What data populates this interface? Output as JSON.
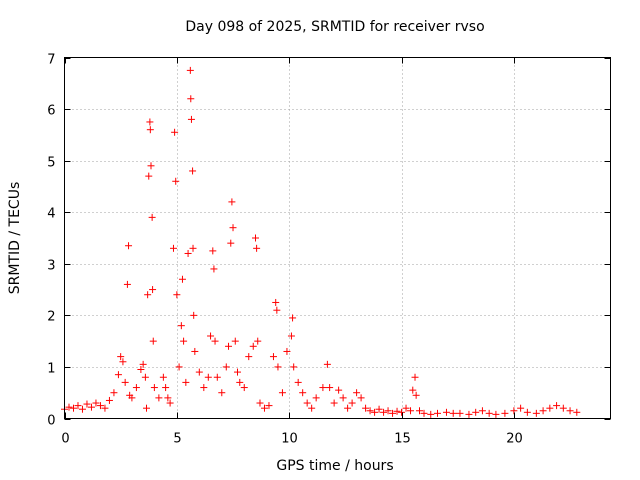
{
  "chart_data": {
    "type": "scatter",
    "title": "Day 098 of 2025, SRMTID for receiver rvso",
    "xlabel": "GPS time / hours",
    "ylabel": "SRMTID / TECUs",
    "xlim": [
      0,
      24.3
    ],
    "ylim": [
      0,
      7
    ],
    "xticks": [
      0,
      5,
      10,
      15,
      20
    ],
    "yticks": [
      0,
      1,
      2,
      3,
      4,
      5,
      6,
      7
    ],
    "grid": true,
    "marker": "+",
    "color": "#ff0000",
    "series": [
      {
        "name": "SRMTID",
        "points": [
          [
            0.0,
            0.18
          ],
          [
            0.2,
            0.22
          ],
          [
            0.4,
            0.2
          ],
          [
            0.6,
            0.25
          ],
          [
            0.8,
            0.18
          ],
          [
            1.0,
            0.28
          ],
          [
            1.2,
            0.22
          ],
          [
            1.4,
            0.3
          ],
          [
            1.6,
            0.25
          ],
          [
            1.8,
            0.2
          ],
          [
            2.0,
            0.35
          ],
          [
            2.2,
            0.5
          ],
          [
            2.4,
            0.85
          ],
          [
            2.5,
            1.2
          ],
          [
            2.6,
            1.1
          ],
          [
            2.7,
            0.7
          ],
          [
            2.8,
            2.6
          ],
          [
            2.85,
            3.35
          ],
          [
            2.9,
            0.45
          ],
          [
            3.0,
            0.4
          ],
          [
            3.2,
            0.6
          ],
          [
            3.4,
            0.95
          ],
          [
            3.5,
            1.05
          ],
          [
            3.6,
            0.8
          ],
          [
            3.65,
            0.2
          ],
          [
            3.7,
            2.4
          ],
          [
            3.75,
            4.7
          ],
          [
            3.8,
            5.75
          ],
          [
            3.82,
            5.6
          ],
          [
            3.85,
            4.9
          ],
          [
            3.9,
            3.9
          ],
          [
            3.92,
            2.5
          ],
          [
            3.95,
            1.5
          ],
          [
            4.0,
            0.6
          ],
          [
            4.2,
            0.4
          ],
          [
            4.4,
            0.8
          ],
          [
            4.5,
            0.6
          ],
          [
            4.6,
            0.4
          ],
          [
            4.7,
            0.3
          ],
          [
            4.85,
            3.3
          ],
          [
            4.9,
            5.55
          ],
          [
            4.95,
            4.6
          ],
          [
            5.0,
            2.4
          ],
          [
            5.1,
            1.0
          ],
          [
            5.2,
            1.8
          ],
          [
            5.25,
            2.7
          ],
          [
            5.3,
            1.5
          ],
          [
            5.4,
            0.7
          ],
          [
            5.5,
            3.2
          ],
          [
            5.6,
            6.75
          ],
          [
            5.62,
            6.2
          ],
          [
            5.65,
            5.8
          ],
          [
            5.7,
            4.8
          ],
          [
            5.72,
            3.3
          ],
          [
            5.75,
            2.0
          ],
          [
            5.8,
            1.3
          ],
          [
            6.0,
            0.9
          ],
          [
            6.2,
            0.6
          ],
          [
            6.4,
            0.8
          ],
          [
            6.5,
            1.6
          ],
          [
            6.6,
            3.25
          ],
          [
            6.65,
            2.9
          ],
          [
            6.7,
            1.5
          ],
          [
            6.8,
            0.8
          ],
          [
            7.0,
            0.5
          ],
          [
            7.2,
            1.0
          ],
          [
            7.3,
            1.4
          ],
          [
            7.4,
            3.4
          ],
          [
            7.45,
            4.2
          ],
          [
            7.5,
            3.7
          ],
          [
            7.6,
            1.5
          ],
          [
            7.7,
            0.9
          ],
          [
            7.8,
            0.7
          ],
          [
            8.0,
            0.6
          ],
          [
            8.2,
            1.2
          ],
          [
            8.4,
            1.4
          ],
          [
            8.5,
            3.5
          ],
          [
            8.55,
            3.3
          ],
          [
            8.6,
            1.5
          ],
          [
            8.7,
            0.3
          ],
          [
            8.9,
            0.2
          ],
          [
            9.1,
            0.25
          ],
          [
            9.3,
            1.2
          ],
          [
            9.4,
            2.25
          ],
          [
            9.45,
            2.1
          ],
          [
            9.5,
            1.0
          ],
          [
            9.7,
            0.5
          ],
          [
            9.9,
            1.3
          ],
          [
            10.1,
            1.6
          ],
          [
            10.15,
            1.95
          ],
          [
            10.2,
            1.0
          ],
          [
            10.4,
            0.7
          ],
          [
            10.6,
            0.5
          ],
          [
            10.8,
            0.3
          ],
          [
            11.0,
            0.2
          ],
          [
            11.2,
            0.4
          ],
          [
            11.5,
            0.6
          ],
          [
            11.7,
            1.05
          ],
          [
            11.8,
            0.6
          ],
          [
            12.0,
            0.3
          ],
          [
            12.2,
            0.55
          ],
          [
            12.4,
            0.4
          ],
          [
            12.6,
            0.2
          ],
          [
            12.8,
            0.3
          ],
          [
            13.0,
            0.5
          ],
          [
            13.2,
            0.4
          ],
          [
            13.4,
            0.2
          ],
          [
            13.6,
            0.15
          ],
          [
            13.8,
            0.12
          ],
          [
            14.0,
            0.18
          ],
          [
            14.2,
            0.12
          ],
          [
            14.4,
            0.15
          ],
          [
            14.6,
            0.1
          ],
          [
            14.8,
            0.14
          ],
          [
            15.0,
            0.12
          ],
          [
            15.2,
            0.2
          ],
          [
            15.4,
            0.15
          ],
          [
            15.5,
            0.55
          ],
          [
            15.6,
            0.8
          ],
          [
            15.65,
            0.45
          ],
          [
            15.8,
            0.15
          ],
          [
            16.0,
            0.1
          ],
          [
            16.3,
            0.08
          ],
          [
            16.6,
            0.1
          ],
          [
            17.0,
            0.12
          ],
          [
            17.3,
            0.1
          ],
          [
            17.6,
            0.1
          ],
          [
            18.0,
            0.08
          ],
          [
            18.3,
            0.12
          ],
          [
            18.6,
            0.15
          ],
          [
            18.9,
            0.1
          ],
          [
            19.2,
            0.08
          ],
          [
            19.6,
            0.1
          ],
          [
            20.0,
            0.15
          ],
          [
            20.3,
            0.2
          ],
          [
            20.6,
            0.12
          ],
          [
            21.0,
            0.1
          ],
          [
            21.3,
            0.15
          ],
          [
            21.6,
            0.2
          ],
          [
            21.9,
            0.25
          ],
          [
            22.2,
            0.2
          ],
          [
            22.5,
            0.15
          ],
          [
            22.8,
            0.12
          ]
        ]
      }
    ]
  }
}
